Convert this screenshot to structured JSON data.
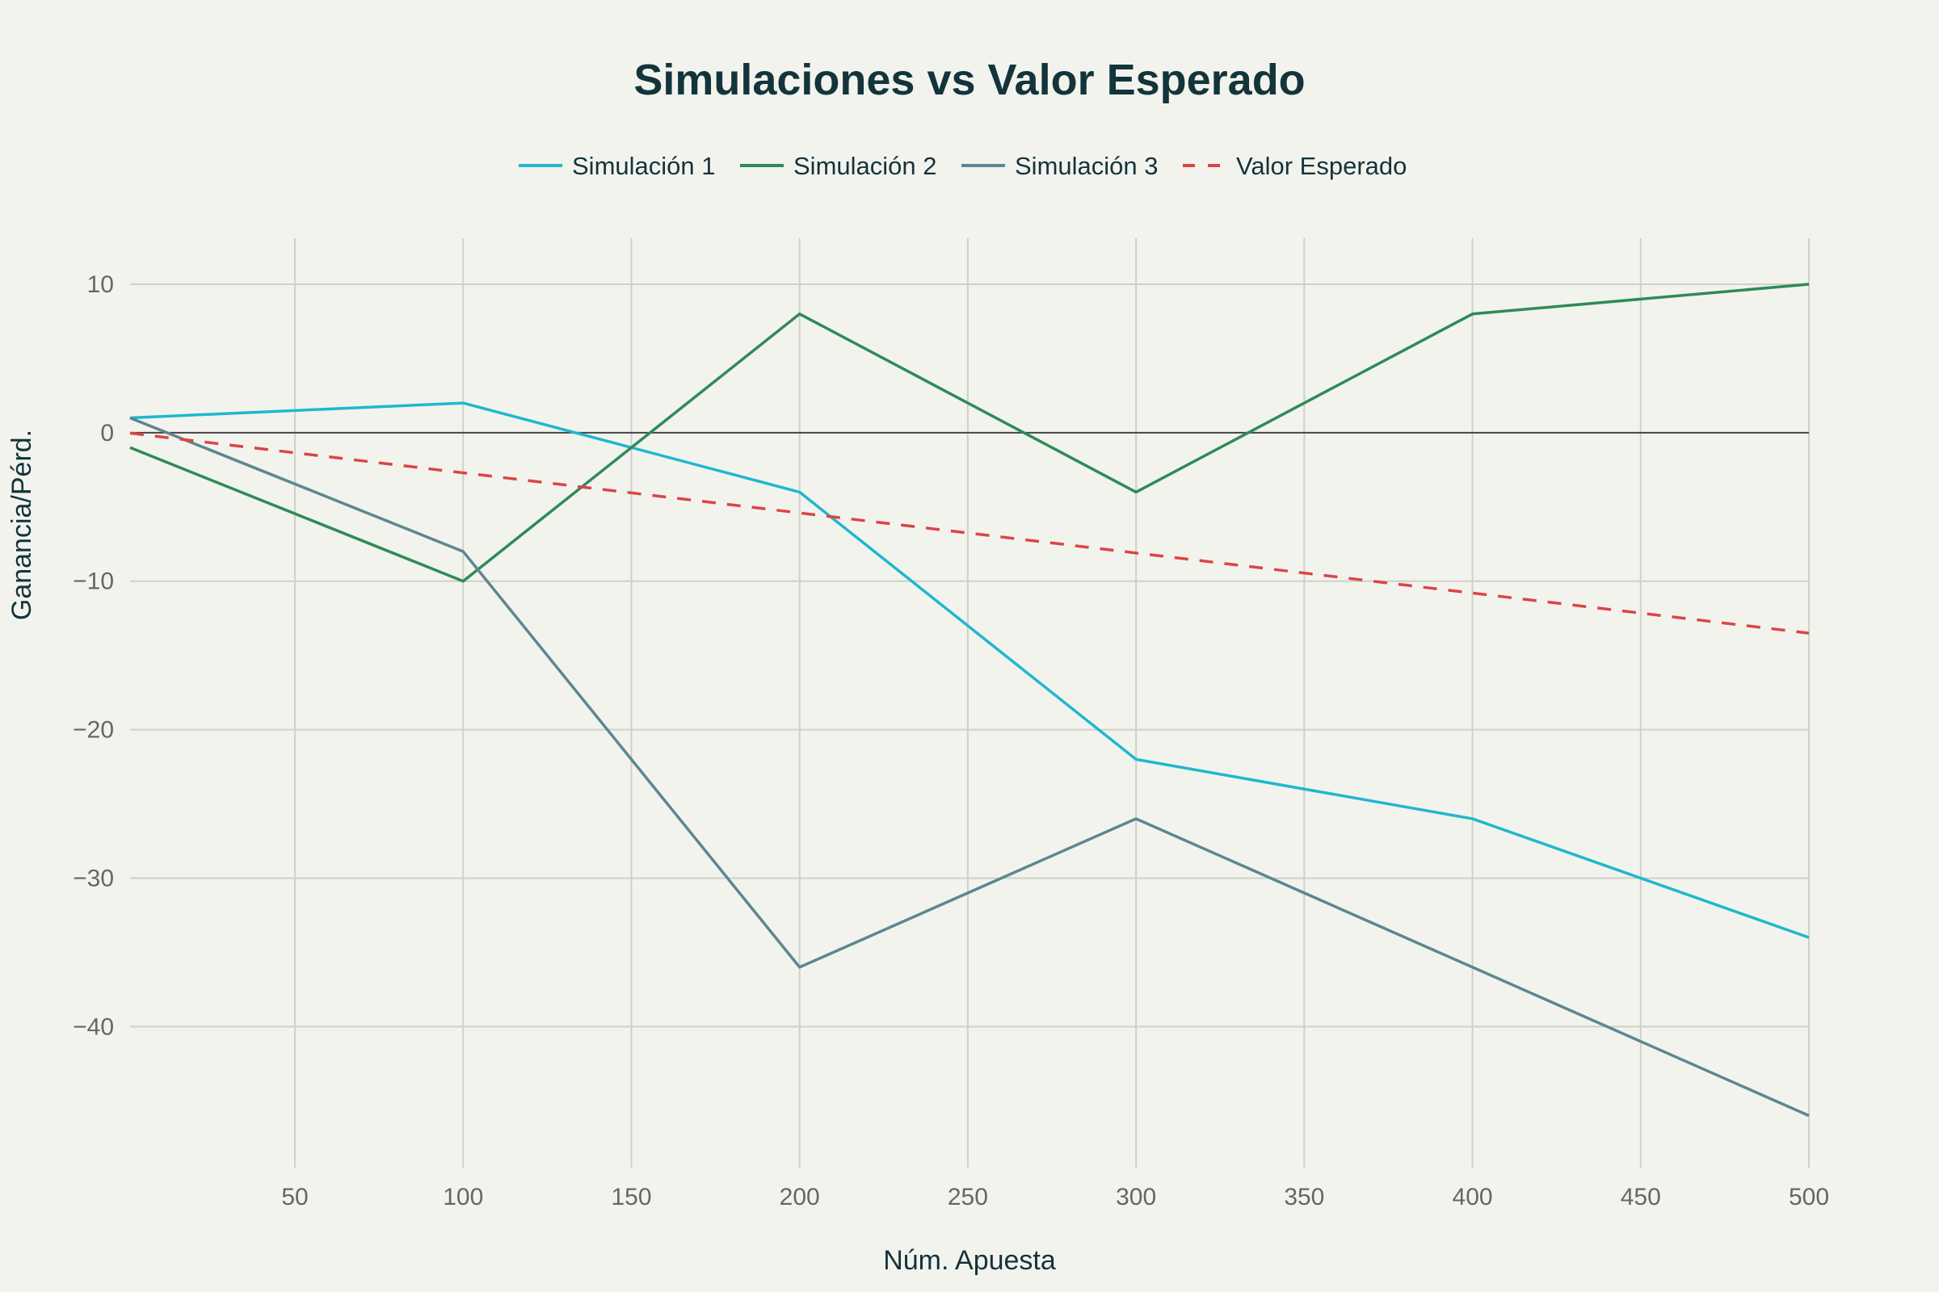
{
  "chart_data": {
    "type": "line",
    "title": "Simulaciones vs Valor Esperado",
    "xlabel": "Núm. Apuesta",
    "ylabel": "Ganancia/Pérd.",
    "xlim": [
      1,
      500
    ],
    "ylim": [
      -49.5,
      13.1
    ],
    "xticks": [
      50,
      100,
      150,
      200,
      250,
      300,
      350,
      400,
      450,
      500
    ],
    "yticks": [
      10,
      0,
      -10,
      -20,
      -30,
      -40
    ],
    "ytick_labels": [
      "10",
      "0",
      "−10",
      "−20",
      "−30",
      "−40"
    ],
    "grid": true,
    "legend_position": "top",
    "series": [
      {
        "name": "Simulación 1",
        "color": "#1fb8cd",
        "dash": false,
        "x": [
          1,
          100,
          200,
          300,
          400,
          500
        ],
        "y": [
          1,
          2,
          -4,
          -22,
          -26,
          -34
        ]
      },
      {
        "name": "Simulación 2",
        "color": "#2e8b57",
        "dash": false,
        "x": [
          1,
          100,
          200,
          300,
          400,
          500
        ],
        "y": [
          -1,
          -10,
          8,
          -4,
          8,
          10
        ]
      },
      {
        "name": "Simulación 3",
        "color": "#5d878f",
        "dash": false,
        "x": [
          1,
          100,
          200,
          300,
          400,
          500
        ],
        "y": [
          1,
          -8,
          -36,
          -26,
          -36,
          -46
        ]
      },
      {
        "name": "Valor Esperado",
        "color": "#db4545",
        "dash": true,
        "x": [
          1,
          500
        ],
        "y": [
          -0.03,
          -13.5
        ]
      }
    ]
  }
}
